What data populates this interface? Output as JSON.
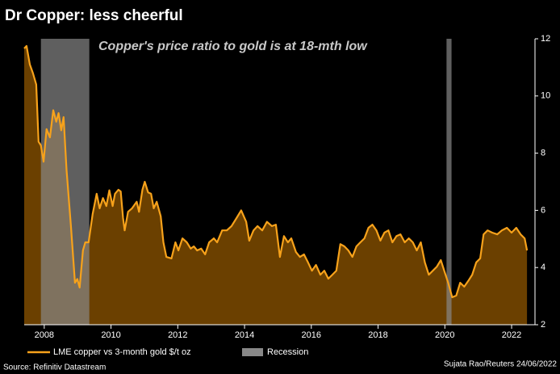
{
  "chart_data": {
    "type": "area",
    "title": "Dr Copper: less cheerful",
    "subtitle": "Copper's price ratio to gold is at 18-mth low",
    "source": "Source: Refinitiv Datastream",
    "credit": "Sujata Rao/Reuters 24/06/2022",
    "xlim": [
      2007.4,
      2022.7
    ],
    "xticks": [
      2008,
      2010,
      2012,
      2014,
      2016,
      2018,
      2020,
      2022
    ],
    "ylim": [
      2,
      12
    ],
    "yticks": [
      2,
      4,
      6,
      8,
      10,
      12
    ],
    "recession_name": "Recession",
    "recession_color": "#888888",
    "recessions": [
      [
        2007.9,
        2009.35
      ],
      [
        2020.05,
        2020.2
      ]
    ],
    "x": [
      2007.4,
      2007.47,
      2007.57,
      2007.66,
      2007.76,
      2007.83,
      2007.9,
      2007.98,
      2008.07,
      2008.17,
      2008.27,
      2008.36,
      2008.43,
      2008.51,
      2008.58,
      2008.67,
      2008.8,
      2008.92,
      2008.99,
      2009.06,
      2009.16,
      2009.23,
      2009.33,
      2009.45,
      2009.57,
      2009.66,
      2009.76,
      2009.86,
      2009.95,
      2010.05,
      2010.12,
      2010.22,
      2010.29,
      2010.36,
      2010.41,
      2010.51,
      2010.63,
      2010.77,
      2010.84,
      2010.94,
      2011.01,
      2011.11,
      2011.2,
      2011.28,
      2011.37,
      2011.49,
      2011.57,
      2011.66,
      2011.81,
      2011.93,
      2012.02,
      2012.14,
      2012.27,
      2012.39,
      2012.48,
      2012.58,
      2012.7,
      2012.82,
      2012.94,
      2013.08,
      2013.18,
      2013.33,
      2013.47,
      2013.61,
      2013.76,
      2013.9,
      2014.05,
      2014.14,
      2014.27,
      2014.39,
      2014.53,
      2014.67,
      2014.82,
      2014.94,
      2015.06,
      2015.18,
      2015.3,
      2015.4,
      2015.54,
      2015.66,
      2015.78,
      2015.9,
      2016.02,
      2016.14,
      2016.27,
      2016.39,
      2016.51,
      2016.63,
      2016.75,
      2016.87,
      2016.99,
      2017.11,
      2017.23,
      2017.35,
      2017.47,
      2017.59,
      2017.71,
      2017.83,
      2017.95,
      2018.07,
      2018.19,
      2018.31,
      2018.43,
      2018.55,
      2018.67,
      2018.8,
      2018.92,
      2019.04,
      2019.16,
      2019.28,
      2019.4,
      2019.52,
      2019.64,
      2019.76,
      2019.88,
      2019.98,
      2020.1,
      2020.22,
      2020.34,
      2020.46,
      2020.58,
      2020.7,
      2020.82,
      2020.94,
      2021.06,
      2021.16,
      2021.28,
      2021.42,
      2021.57,
      2021.71,
      2021.86,
      2022.0,
      2022.14,
      2022.27,
      2022.39,
      2022.46
    ],
    "series": [
      {
        "name": "LME copper vs 3-month gold $/t oz",
        "color": "#f7a21b",
        "fill": "#6b4000",
        "values": [
          11.66,
          11.75,
          11.1,
          10.8,
          10.4,
          8.4,
          8.27,
          7.7,
          8.84,
          8.55,
          9.5,
          9.1,
          9.4,
          8.8,
          9.26,
          7.4,
          5.45,
          3.47,
          3.6,
          3.3,
          4.6,
          4.88,
          4.88,
          5.87,
          6.58,
          6.07,
          6.43,
          6.15,
          6.7,
          6.15,
          6.58,
          6.72,
          6.66,
          5.73,
          5.3,
          5.95,
          6.07,
          6.3,
          5.95,
          6.72,
          7.0,
          6.63,
          6.58,
          6.07,
          6.3,
          5.79,
          4.88,
          4.37,
          4.32,
          4.88,
          4.6,
          5.02,
          4.88,
          4.66,
          4.74,
          4.6,
          4.66,
          4.46,
          4.88,
          5.02,
          4.88,
          5.3,
          5.3,
          5.45,
          5.73,
          6.0,
          5.6,
          4.94,
          5.3,
          5.45,
          5.3,
          5.6,
          5.45,
          5.5,
          4.37,
          5.1,
          4.88,
          5.02,
          4.54,
          4.37,
          4.46,
          4.18,
          3.89,
          4.09,
          3.75,
          3.89,
          3.61,
          3.75,
          3.89,
          4.82,
          4.74,
          4.6,
          4.37,
          4.74,
          4.88,
          5.02,
          5.39,
          5.5,
          5.3,
          4.94,
          5.22,
          5.3,
          4.88,
          5.1,
          5.16,
          4.88,
          5.02,
          4.88,
          4.6,
          4.88,
          4.18,
          3.75,
          3.89,
          4.03,
          4.26,
          3.89,
          3.47,
          2.96,
          3.02,
          3.47,
          3.33,
          3.53,
          3.75,
          4.18,
          4.32,
          5.16,
          5.3,
          5.22,
          5.16,
          5.3,
          5.39,
          5.22,
          5.39,
          5.16,
          5.02,
          4.6
        ]
      }
    ]
  }
}
